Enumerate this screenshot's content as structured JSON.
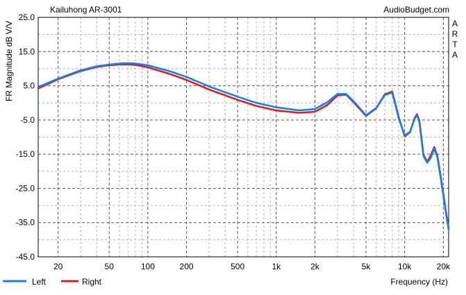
{
  "header": {
    "left_title": "Kailuhong AR-3001",
    "right_title": "AudioBudget.com",
    "side_letters": [
      "A",
      "R",
      "T",
      "A"
    ]
  },
  "chart_data": {
    "type": "line",
    "title": "Kailuhong AR-3001",
    "xlabel": "Frequency (Hz)",
    "ylabel": "FR Magnitude dB V/V",
    "x_scale": "log",
    "xlim": [
      14,
      22000
    ],
    "ylim": [
      -45,
      25
    ],
    "grid": true,
    "legend_placement": "bottom-left",
    "x_ticks": [
      20,
      50,
      100,
      200,
      500,
      1000,
      2000,
      5000,
      10000,
      20000
    ],
    "x_tick_labels": [
      "20",
      "50",
      "100",
      "200",
      "500",
      "1k",
      "2k",
      "5k",
      "10k",
      "20k"
    ],
    "y_ticks": [
      25,
      15,
      5,
      -5,
      -15,
      -25,
      -35,
      -45
    ],
    "y_tick_labels": [
      "25.0",
      "15.0",
      "5.0",
      "-5.0",
      "-15.0",
      "-25.0",
      "-35.0",
      "-45.0"
    ],
    "series": [
      {
        "name": "Left",
        "color": "#1a7fe0",
        "x": [
          14,
          20,
          30,
          40,
          50,
          60,
          70,
          80,
          100,
          150,
          200,
          300,
          500,
          700,
          1000,
          1500,
          2000,
          2500,
          3000,
          3500,
          4000,
          5000,
          6000,
          7000,
          8000,
          9000,
          10000,
          11000,
          12000,
          12500,
          13000,
          13500,
          14000,
          15000,
          16000,
          17000,
          18000,
          19000,
          20000,
          21000,
          22000
        ],
        "y": [
          4.6,
          7.1,
          9.5,
          10.7,
          11.2,
          11.5,
          11.6,
          11.5,
          11.0,
          9.2,
          7.6,
          4.8,
          1.8,
          0.0,
          -1.3,
          -2.2,
          -1.8,
          0.2,
          2.6,
          2.6,
          0.5,
          -3.6,
          -1.5,
          2.3,
          3.0,
          -4.5,
          -9.5,
          -8.5,
          -4.5,
          -3.6,
          -5.5,
          -10.5,
          -15.5,
          -17.5,
          -16.0,
          -13.3,
          -16.0,
          -21.5,
          -27.0,
          -32.5,
          -37.0
        ]
      },
      {
        "name": "Right",
        "color": "#dd1c1c",
        "x": [
          14,
          20,
          30,
          40,
          50,
          60,
          70,
          80,
          100,
          150,
          200,
          300,
          500,
          700,
          1000,
          1500,
          2000,
          2500,
          3000,
          3500,
          4000,
          5000,
          6000,
          7000,
          8000,
          9000,
          10000,
          11000,
          12000,
          12500,
          13000,
          13500,
          14000,
          15000,
          16000,
          17000,
          18000,
          19000,
          20000,
          21000,
          22000
        ],
        "y": [
          4.2,
          6.9,
          9.3,
          10.5,
          11.0,
          11.2,
          11.2,
          11.1,
          10.4,
          8.4,
          6.7,
          3.9,
          0.9,
          -0.9,
          -2.2,
          -2.9,
          -2.6,
          -0.6,
          2.2,
          2.4,
          0.2,
          -3.8,
          -1.6,
          2.5,
          3.3,
          -4.2,
          -9.8,
          -8.6,
          -4.3,
          -3.3,
          -5.2,
          -10.0,
          -15.2,
          -17.2,
          -15.3,
          -12.9,
          -15.6,
          -21.0,
          -26.5,
          -32.0,
          -36.6
        ]
      }
    ]
  }
}
